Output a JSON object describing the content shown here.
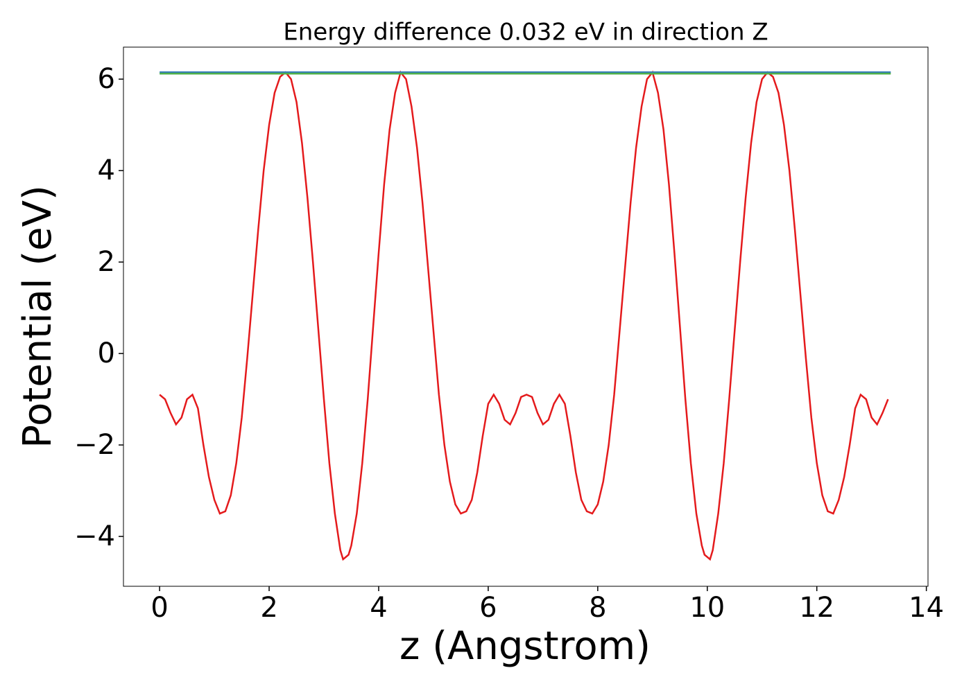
{
  "chart_data": {
    "type": "line",
    "title": "Energy difference 0.032 eV in direction Z",
    "xlabel": "z (Angstrom)",
    "ylabel": "Potential (eV)",
    "xlim": [
      -0.66,
      14.03
    ],
    "ylim": [
      -5.09,
      6.7
    ],
    "xticks": [
      0,
      2,
      4,
      6,
      8,
      10,
      12,
      14
    ],
    "yticks": [
      {
        "value": -4,
        "label": "−4"
      },
      {
        "value": -2,
        "label": "−2"
      },
      0,
      2,
      4,
      6
    ],
    "series": [
      {
        "color": "#e41a1c",
        "x": [
          0,
          0.1,
          0.2,
          0.3,
          0.4,
          0.5,
          0.6,
          0.7,
          0.8,
          0.9,
          1.0,
          1.1,
          1.2,
          1.3,
          1.4,
          1.5,
          1.6,
          1.7,
          1.8,
          1.9,
          2.0,
          2.1,
          2.2,
          2.3,
          2.4,
          2.5,
          2.6,
          2.7,
          2.8,
          2.9,
          3.0,
          3.1,
          3.2,
          3.3,
          3.35,
          3.45,
          3.5,
          3.6,
          3.7,
          3.8,
          3.9,
          4.0,
          4.1,
          4.2,
          4.3,
          4.4,
          4.5,
          4.6,
          4.7,
          4.8,
          4.9,
          5.0,
          5.1,
          5.2,
          5.3,
          5.4,
          5.5,
          5.6,
          5.7,
          5.8,
          5.9,
          6.0,
          6.1,
          6.2,
          6.3,
          6.4,
          6.5,
          6.6,
          6.7,
          6.8,
          6.9,
          7.0,
          7.1,
          7.2,
          7.3,
          7.4,
          7.5,
          7.6,
          7.7,
          7.8,
          7.9,
          8.0,
          8.1,
          8.2,
          8.3,
          8.4,
          8.5,
          8.6,
          8.7,
          8.8,
          8.9,
          9.0,
          9.1,
          9.2,
          9.3,
          9.4,
          9.5,
          9.6,
          9.7,
          9.8,
          9.9,
          9.95,
          10.05,
          10.1,
          10.2,
          10.3,
          10.4,
          10.5,
          10.6,
          10.7,
          10.8,
          10.9,
          11.0,
          11.1,
          11.2,
          11.3,
          11.4,
          11.5,
          11.6,
          11.7,
          11.8,
          11.9,
          12.0,
          12.1,
          12.2,
          12.3,
          12.4,
          12.5,
          12.6,
          12.7,
          12.8,
          12.9,
          13.0,
          13.1,
          13.2,
          13.3
        ],
        "values": [
          -0.9,
          -1.0,
          -1.3,
          -1.55,
          -1.4,
          -1.0,
          -0.9,
          -1.2,
          -2.0,
          -2.7,
          -3.2,
          -3.5,
          -3.45,
          -3.1,
          -2.4,
          -1.4,
          -0.1,
          1.3,
          2.7,
          4.0,
          5.0,
          5.7,
          6.05,
          6.15,
          6.0,
          5.5,
          4.6,
          3.4,
          2.0,
          0.5,
          -1.0,
          -2.4,
          -3.5,
          -4.3,
          -4.5,
          -4.4,
          -4.2,
          -3.5,
          -2.4,
          -1.0,
          0.6,
          2.2,
          3.7,
          4.9,
          5.7,
          6.15,
          6.0,
          5.4,
          4.5,
          3.3,
          1.9,
          0.5,
          -0.9,
          -2.0,
          -2.8,
          -3.3,
          -3.5,
          -3.45,
          -3.2,
          -2.6,
          -1.8,
          -1.1,
          -0.9,
          -1.1,
          -1.45,
          -1.55,
          -1.3,
          -0.95,
          -0.9,
          -0.95,
          -1.3,
          -1.55,
          -1.45,
          -1.1,
          -0.9,
          -1.1,
          -1.8,
          -2.6,
          -3.2,
          -3.45,
          -3.5,
          -3.3,
          -2.8,
          -2.0,
          -0.9,
          0.5,
          1.9,
          3.3,
          4.5,
          5.4,
          6.0,
          6.15,
          5.7,
          4.9,
          3.7,
          2.2,
          0.6,
          -1.0,
          -2.4,
          -3.5,
          -4.2,
          -4.4,
          -4.5,
          -4.3,
          -3.5,
          -2.4,
          -1.0,
          0.5,
          2.0,
          3.4,
          4.6,
          5.5,
          6.0,
          6.15,
          6.05,
          5.7,
          5.0,
          4.0,
          2.7,
          1.3,
          -0.1,
          -1.4,
          -2.4,
          -3.1,
          -3.45,
          -3.5,
          -3.2,
          -2.7,
          -2.0,
          -1.2,
          -0.9,
          -1.0,
          -1.4,
          -1.55,
          -1.3,
          -1.0
        ]
      },
      {
        "color": "#377eb8",
        "x": [
          0,
          13.35
        ],
        "values": [
          6.15,
          6.15
        ]
      },
      {
        "color": "#4daf4a",
        "x": [
          0,
          13.35
        ],
        "values": [
          6.12,
          6.12
        ]
      }
    ]
  }
}
